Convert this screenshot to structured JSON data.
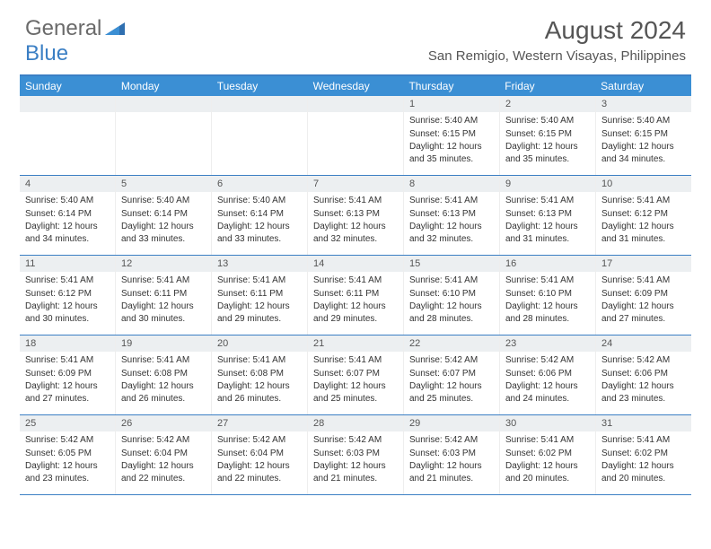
{
  "logo": {
    "part1": "General",
    "part2": "Blue"
  },
  "title": "August 2024",
  "location": "San Remigio, Western Visayas, Philippines",
  "colors": {
    "header_bg": "#3b8fd4",
    "border": "#3b7fc4",
    "daynum_bg": "#eceff1",
    "text": "#333333",
    "logo_gray": "#6a6a6a"
  },
  "dayNames": [
    "Sunday",
    "Monday",
    "Tuesday",
    "Wednesday",
    "Thursday",
    "Friday",
    "Saturday"
  ],
  "weeks": [
    [
      {
        "num": "",
        "sunrise": "",
        "sunset": "",
        "daylight": ""
      },
      {
        "num": "",
        "sunrise": "",
        "sunset": "",
        "daylight": ""
      },
      {
        "num": "",
        "sunrise": "",
        "sunset": "",
        "daylight": ""
      },
      {
        "num": "",
        "sunrise": "",
        "sunset": "",
        "daylight": ""
      },
      {
        "num": "1",
        "sunrise": "Sunrise: 5:40 AM",
        "sunset": "Sunset: 6:15 PM",
        "daylight": "Daylight: 12 hours and 35 minutes."
      },
      {
        "num": "2",
        "sunrise": "Sunrise: 5:40 AM",
        "sunset": "Sunset: 6:15 PM",
        "daylight": "Daylight: 12 hours and 35 minutes."
      },
      {
        "num": "3",
        "sunrise": "Sunrise: 5:40 AM",
        "sunset": "Sunset: 6:15 PM",
        "daylight": "Daylight: 12 hours and 34 minutes."
      }
    ],
    [
      {
        "num": "4",
        "sunrise": "Sunrise: 5:40 AM",
        "sunset": "Sunset: 6:14 PM",
        "daylight": "Daylight: 12 hours and 34 minutes."
      },
      {
        "num": "5",
        "sunrise": "Sunrise: 5:40 AM",
        "sunset": "Sunset: 6:14 PM",
        "daylight": "Daylight: 12 hours and 33 minutes."
      },
      {
        "num": "6",
        "sunrise": "Sunrise: 5:40 AM",
        "sunset": "Sunset: 6:14 PM",
        "daylight": "Daylight: 12 hours and 33 minutes."
      },
      {
        "num": "7",
        "sunrise": "Sunrise: 5:41 AM",
        "sunset": "Sunset: 6:13 PM",
        "daylight": "Daylight: 12 hours and 32 minutes."
      },
      {
        "num": "8",
        "sunrise": "Sunrise: 5:41 AM",
        "sunset": "Sunset: 6:13 PM",
        "daylight": "Daylight: 12 hours and 32 minutes."
      },
      {
        "num": "9",
        "sunrise": "Sunrise: 5:41 AM",
        "sunset": "Sunset: 6:13 PM",
        "daylight": "Daylight: 12 hours and 31 minutes."
      },
      {
        "num": "10",
        "sunrise": "Sunrise: 5:41 AM",
        "sunset": "Sunset: 6:12 PM",
        "daylight": "Daylight: 12 hours and 31 minutes."
      }
    ],
    [
      {
        "num": "11",
        "sunrise": "Sunrise: 5:41 AM",
        "sunset": "Sunset: 6:12 PM",
        "daylight": "Daylight: 12 hours and 30 minutes."
      },
      {
        "num": "12",
        "sunrise": "Sunrise: 5:41 AM",
        "sunset": "Sunset: 6:11 PM",
        "daylight": "Daylight: 12 hours and 30 minutes."
      },
      {
        "num": "13",
        "sunrise": "Sunrise: 5:41 AM",
        "sunset": "Sunset: 6:11 PM",
        "daylight": "Daylight: 12 hours and 29 minutes."
      },
      {
        "num": "14",
        "sunrise": "Sunrise: 5:41 AM",
        "sunset": "Sunset: 6:11 PM",
        "daylight": "Daylight: 12 hours and 29 minutes."
      },
      {
        "num": "15",
        "sunrise": "Sunrise: 5:41 AM",
        "sunset": "Sunset: 6:10 PM",
        "daylight": "Daylight: 12 hours and 28 minutes."
      },
      {
        "num": "16",
        "sunrise": "Sunrise: 5:41 AM",
        "sunset": "Sunset: 6:10 PM",
        "daylight": "Daylight: 12 hours and 28 minutes."
      },
      {
        "num": "17",
        "sunrise": "Sunrise: 5:41 AM",
        "sunset": "Sunset: 6:09 PM",
        "daylight": "Daylight: 12 hours and 27 minutes."
      }
    ],
    [
      {
        "num": "18",
        "sunrise": "Sunrise: 5:41 AM",
        "sunset": "Sunset: 6:09 PM",
        "daylight": "Daylight: 12 hours and 27 minutes."
      },
      {
        "num": "19",
        "sunrise": "Sunrise: 5:41 AM",
        "sunset": "Sunset: 6:08 PM",
        "daylight": "Daylight: 12 hours and 26 minutes."
      },
      {
        "num": "20",
        "sunrise": "Sunrise: 5:41 AM",
        "sunset": "Sunset: 6:08 PM",
        "daylight": "Daylight: 12 hours and 26 minutes."
      },
      {
        "num": "21",
        "sunrise": "Sunrise: 5:41 AM",
        "sunset": "Sunset: 6:07 PM",
        "daylight": "Daylight: 12 hours and 25 minutes."
      },
      {
        "num": "22",
        "sunrise": "Sunrise: 5:42 AM",
        "sunset": "Sunset: 6:07 PM",
        "daylight": "Daylight: 12 hours and 25 minutes."
      },
      {
        "num": "23",
        "sunrise": "Sunrise: 5:42 AM",
        "sunset": "Sunset: 6:06 PM",
        "daylight": "Daylight: 12 hours and 24 minutes."
      },
      {
        "num": "24",
        "sunrise": "Sunrise: 5:42 AM",
        "sunset": "Sunset: 6:06 PM",
        "daylight": "Daylight: 12 hours and 23 minutes."
      }
    ],
    [
      {
        "num": "25",
        "sunrise": "Sunrise: 5:42 AM",
        "sunset": "Sunset: 6:05 PM",
        "daylight": "Daylight: 12 hours and 23 minutes."
      },
      {
        "num": "26",
        "sunrise": "Sunrise: 5:42 AM",
        "sunset": "Sunset: 6:04 PM",
        "daylight": "Daylight: 12 hours and 22 minutes."
      },
      {
        "num": "27",
        "sunrise": "Sunrise: 5:42 AM",
        "sunset": "Sunset: 6:04 PM",
        "daylight": "Daylight: 12 hours and 22 minutes."
      },
      {
        "num": "28",
        "sunrise": "Sunrise: 5:42 AM",
        "sunset": "Sunset: 6:03 PM",
        "daylight": "Daylight: 12 hours and 21 minutes."
      },
      {
        "num": "29",
        "sunrise": "Sunrise: 5:42 AM",
        "sunset": "Sunset: 6:03 PM",
        "daylight": "Daylight: 12 hours and 21 minutes."
      },
      {
        "num": "30",
        "sunrise": "Sunrise: 5:41 AM",
        "sunset": "Sunset: 6:02 PM",
        "daylight": "Daylight: 12 hours and 20 minutes."
      },
      {
        "num": "31",
        "sunrise": "Sunrise: 5:41 AM",
        "sunset": "Sunset: 6:02 PM",
        "daylight": "Daylight: 12 hours and 20 minutes."
      }
    ]
  ]
}
